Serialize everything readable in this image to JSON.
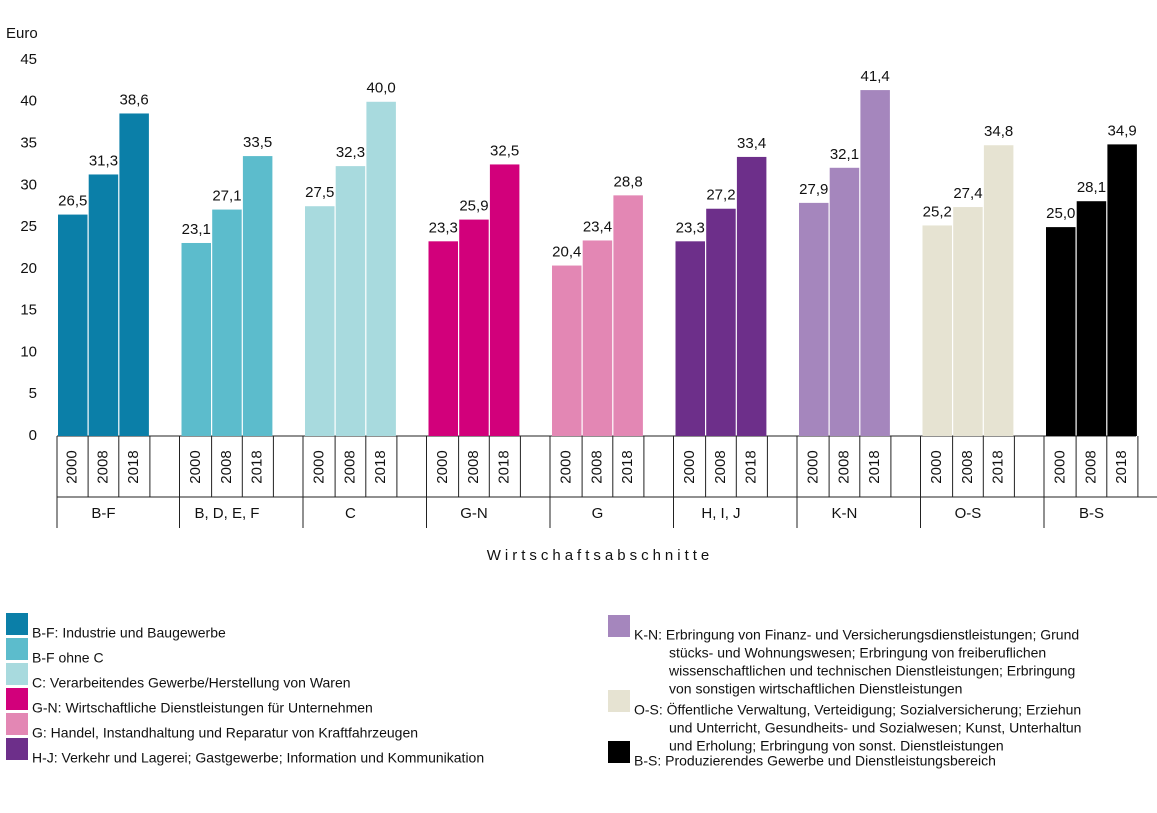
{
  "chart_data": {
    "type": "bar",
    "y_label": "Euro",
    "x_label": "Wirtschaftsabschnitte",
    "ylim": [
      0,
      45
    ],
    "yticks": [
      0,
      5,
      10,
      15,
      20,
      25,
      30,
      35,
      40,
      45
    ],
    "grid": false,
    "years": [
      "2000",
      "2008",
      "2018"
    ],
    "groups": [
      {
        "name": "B-F",
        "color": "#0b7fa8",
        "values": [
          26.5,
          31.3,
          38.6
        ],
        "value_labels": [
          "26,5",
          "31,3",
          "38,6"
        ],
        "legend": [
          "B-F: Industrie und Baugewerbe"
        ]
      },
      {
        "name": "B, D, E, F",
        "color": "#5cbccc",
        "values": [
          23.1,
          27.1,
          33.5
        ],
        "value_labels": [
          "23,1",
          "27,1",
          "33,5"
        ],
        "legend": [
          "B-F ohne C"
        ]
      },
      {
        "name": "C",
        "color": "#a8dade",
        "values": [
          27.5,
          32.3,
          40.0
        ],
        "value_labels": [
          "27,5",
          "32,3",
          "40,0"
        ],
        "legend": [
          "C: Verarbeitendes Gewerbe/Herstellung von Waren"
        ]
      },
      {
        "name": "G-N",
        "color": "#d2007b",
        "values": [
          23.3,
          25.9,
          32.5
        ],
        "value_labels": [
          "23,3",
          "25,9",
          "32,5"
        ],
        "legend": [
          "G-N: Wirtschaftliche Dienstleistungen für Unternehmen"
        ]
      },
      {
        "name": "G",
        "color": "#e387b4",
        "values": [
          20.4,
          23.4,
          28.8
        ],
        "value_labels": [
          "20,4",
          "23,4",
          "28,8"
        ],
        "legend": [
          "G: Handel, Instandhaltung und Reparatur von Kraftfahrzeugen"
        ]
      },
      {
        "name": "H, I, J",
        "color": "#6d2f8a",
        "values": [
          23.3,
          27.2,
          33.4
        ],
        "value_labels": [
          "23,3",
          "27,2",
          "33,4"
        ],
        "legend": [
          "H-J: Verkehr und Lagerei; Gastgewerbe; Information und Kommunikation"
        ]
      },
      {
        "name": "K-N",
        "color": "#a586bd",
        "values": [
          27.9,
          32.1,
          41.4
        ],
        "value_labels": [
          "27,9",
          "32,1",
          "41,4"
        ],
        "legend": [
          "K-N: Erbringung von Finanz- und Versicherungsdienstleistungen; Grund",
          "stücks- und Wohnungswesen; Erbringung von freiberuflichen",
          "wissenschaftlichen und technischen Dienstleistungen; Erbringung",
          "von sonstigen wirtschaftlichen Dienstleistungen"
        ]
      },
      {
        "name": "O-S",
        "color": "#e6e3d2",
        "values": [
          25.2,
          27.4,
          34.8
        ],
        "value_labels": [
          "25,2",
          "27,4",
          "34,8"
        ],
        "legend": [
          "O-S: Öffentliche Verwaltung, Verteidigung; Sozialversicherung; Erziehun",
          "und Unterricht, Gesundheits- und Sozialwesen; Kunst, Unterhaltun",
          "und Erholung; Erbringung von sonst. Dienstleistungen"
        ]
      },
      {
        "name": "B-S",
        "color": "#000000",
        "values": [
          25.0,
          28.1,
          34.9
        ],
        "value_labels": [
          "25,0",
          "28,1",
          "34,9"
        ],
        "legend": [
          "B-S: Produzierendes Gewerbe und Dienstleistungsbereich"
        ]
      }
    ]
  }
}
